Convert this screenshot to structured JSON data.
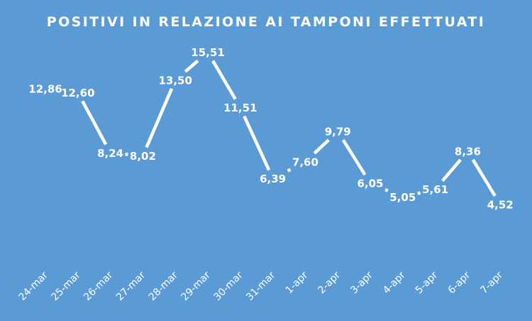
{
  "chart_data": {
    "type": "line",
    "title": "POSITIVI IN RELAZIONE AI TAMPONI EFFETTUATI",
    "categories": [
      "24-mar",
      "25-mar",
      "26-mar",
      "27-mar",
      "28-mar",
      "29-mar",
      "30-mar",
      "31-mar",
      "1-apr",
      "2-apr",
      "3-apr",
      "4-apr",
      "5-apr",
      "6-apr",
      "7-apr"
    ],
    "values": [
      12.86,
      12.6,
      8.24,
      8.02,
      13.5,
      15.51,
      11.51,
      6.39,
      7.6,
      9.79,
      6.05,
      5.05,
      5.61,
      8.36,
      4.52
    ],
    "labels": [
      "12,86",
      "12,60",
      "8,24",
      "8,02",
      "13,50",
      "15,51",
      "11,51",
      "6,39",
      "7,60",
      "9,79",
      "6,05",
      "5,05",
      "5,61",
      "8,36",
      "4,52"
    ],
    "xlabel": "",
    "ylabel": "",
    "ylim": [
      0,
      20
    ],
    "grid": false,
    "legend": "none",
    "colors": {
      "background": "#5B9BD5",
      "line": "#FFFFFF",
      "text": "#FFFFFF"
    }
  }
}
